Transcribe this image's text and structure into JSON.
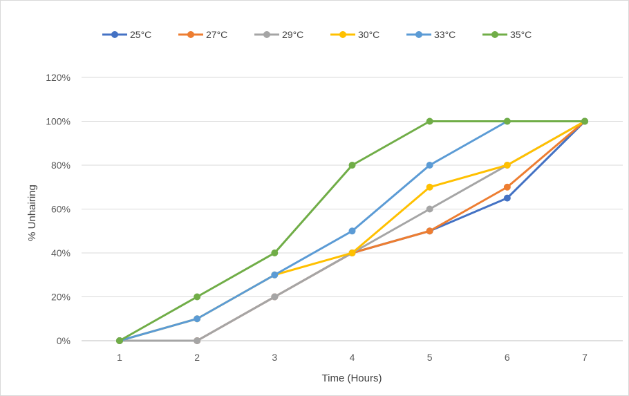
{
  "chart_data": {
    "type": "line",
    "title": "",
    "xlabel": "Time (Hours)",
    "ylabel": "% Unhairing",
    "x": [
      1,
      2,
      3,
      4,
      5,
      6,
      7
    ],
    "x_tick_labels": [
      "1",
      "2",
      "3",
      "4",
      "5",
      "6",
      "7"
    ],
    "ylim": [
      0,
      120
    ],
    "y_ticks": [
      0,
      20,
      40,
      60,
      80,
      100,
      120
    ],
    "y_tick_labels": [
      "0%",
      "20%",
      "40%",
      "60%",
      "80%",
      "100%",
      "120%"
    ],
    "grid": "horizontal",
    "legend_position": "top",
    "series": [
      {
        "name": "25°C",
        "color": "#4472c4",
        "values": [
          0,
          0,
          20,
          40,
          50,
          65,
          100
        ]
      },
      {
        "name": "27°C",
        "color": "#ed7d31",
        "values": [
          0,
          0,
          20,
          40,
          50,
          70,
          100
        ]
      },
      {
        "name": "29°C",
        "color": "#a5a5a5",
        "values": [
          0,
          0,
          20,
          40,
          60,
          80,
          100
        ]
      },
      {
        "name": "30°C",
        "color": "#ffc000",
        "values": [
          0,
          10,
          30,
          40,
          70,
          80,
          100
        ]
      },
      {
        "name": "33°C",
        "color": "#5b9bd5",
        "values": [
          0,
          10,
          30,
          50,
          80,
          100,
          100
        ]
      },
      {
        "name": "35°C",
        "color": "#70ad47",
        "values": [
          0,
          20,
          40,
          80,
          100,
          100,
          100
        ]
      }
    ]
  }
}
